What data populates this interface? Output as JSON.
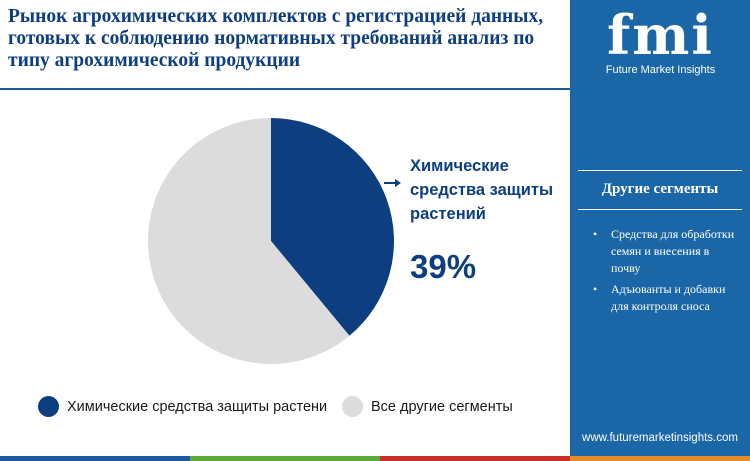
{
  "title": "Рынок агрохимических комплектов с регистрацией данных, готовых к соблюдению нормативных требований анализ по типу агрохимической продукции",
  "chart_data": {
    "type": "pie",
    "slices": [
      {
        "label": "Химические средства защиты растений",
        "value": 39,
        "color": "#0d3f80"
      },
      {
        "label": "Все другие сегменты",
        "value": 61,
        "color": "#dcdcdc"
      }
    ],
    "callout": {
      "label": "Химические средства защиты растений",
      "value_text": "39%"
    },
    "legend": [
      {
        "label": "Химические средства защиты растени",
        "color": "#0d3f80"
      },
      {
        "label": "Все другие сегменты",
        "color": "#dcdcdc"
      }
    ],
    "legend_position": "bottom"
  },
  "sidebar": {
    "logo_text": "fmi",
    "logo_subtitle": "Future Market Insights",
    "heading": "Другие сегменты",
    "items": [
      "Средства для обработки семян и внесения в почву",
      "Адъюванты и добавки для контроля сноса"
    ],
    "bullet": "•",
    "website": "www.futuremarketinsights.com"
  },
  "colors": {
    "primary": "#0d3f80",
    "sidebar_bg": "#1a66a6",
    "other": "#dcdcdc",
    "bar_blue": "#1d5aa0",
    "bar_green": "#5fa83c",
    "bar_red": "#c8312b",
    "bar_orange": "#e58c2a"
  }
}
